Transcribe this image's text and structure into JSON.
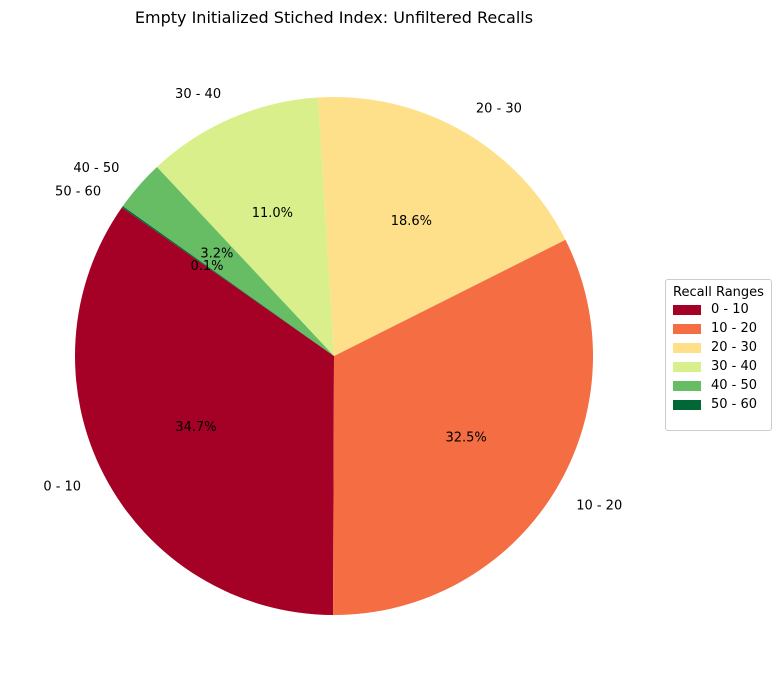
{
  "chart_data": {
    "type": "pie",
    "title": "Empty Initialized Stiched Index: Unfiltered Recalls",
    "categories": [
      "0 - 10",
      "10 - 20",
      "20 - 30",
      "30 - 40",
      "40 - 50",
      "50 - 60"
    ],
    "values": [
      34.7,
      32.5,
      18.6,
      11.0,
      3.2,
      0.1
    ],
    "value_labels": [
      "34.7%",
      "32.5%",
      "18.6%",
      "11.0%",
      "3.2%",
      "0.1%"
    ],
    "colors": [
      "#a50026",
      "#f46d43",
      "#fee08b",
      "#d9ef8b",
      "#66bd63",
      "#006837"
    ],
    "start_angle_deg": 145,
    "direction": "counterclockwise",
    "legend": {
      "title": "Recall Ranges",
      "position": "right"
    }
  }
}
